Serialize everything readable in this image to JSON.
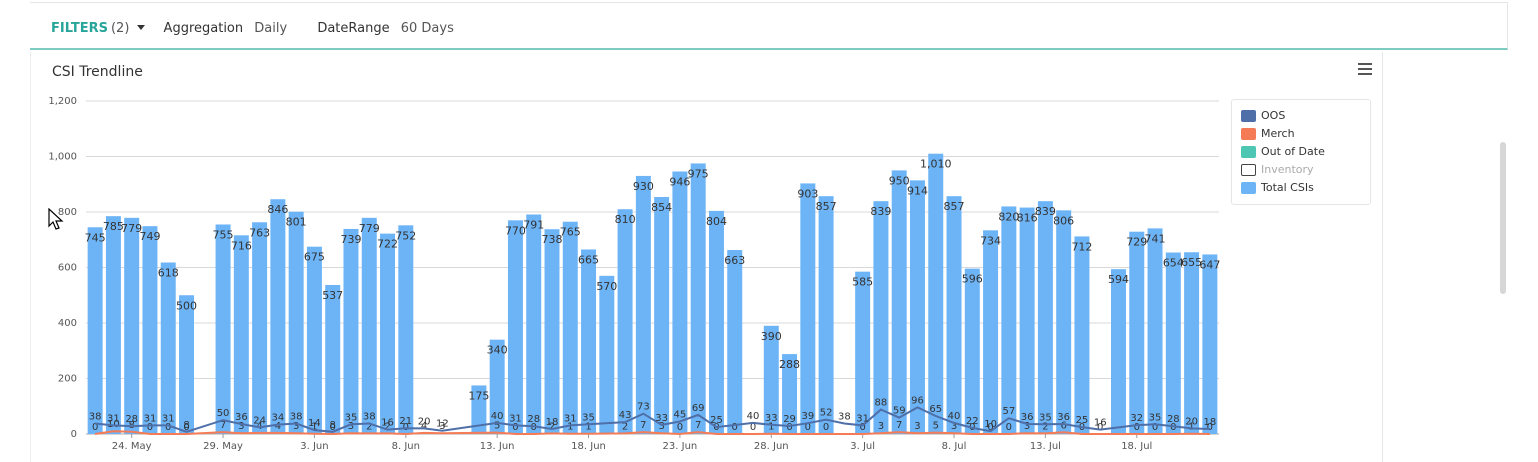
{
  "filters": {
    "label": "FILTERS",
    "count": "(2)",
    "aggregation_label": "Aggregation",
    "aggregation_value": "Daily",
    "daterange_label": "DateRange",
    "daterange_value": "60 Days"
  },
  "panel": {
    "title": "CSI Trendline"
  },
  "colors": {
    "oos": "#4e6fa8",
    "merch": "#f47b55",
    "out_of_date": "#4dc7b4",
    "inventory": "#ffffff",
    "total": "#6db4f7",
    "teal_accent": "#27a59a"
  },
  "chart_data": {
    "type": "bar",
    "title": "CSI Trendline",
    "ylim": [
      0,
      1200
    ],
    "y_ticks": [
      "0",
      "200",
      "400",
      "600",
      "800",
      "1,000",
      "1,200"
    ],
    "grid": true,
    "legend_position": "right",
    "x_tick_labels": [
      "24. May",
      "29. May",
      "3. Jun",
      "8. Jun",
      "13. Jun",
      "18. Jun",
      "23. Jun",
      "28. Jun",
      "3. Jul",
      "8. Jul",
      "13. Jul",
      "18. Jul"
    ],
    "legend": [
      {
        "name": "OOS",
        "color": "#4e6fa8",
        "visible": true
      },
      {
        "name": "Merch",
        "color": "#f47b55",
        "visible": true
      },
      {
        "name": "Out of Date",
        "color": "#4dc7b4",
        "visible": true
      },
      {
        "name": "Inventory",
        "color": "#ffffff",
        "visible": false
      },
      {
        "name": "Total CSIs",
        "color": "#6db4f7",
        "visible": true
      }
    ],
    "series": [
      {
        "name": "Total CSIs",
        "values": [
          745,
          785,
          779,
          749,
          618,
          500,
          null,
          755,
          716,
          763,
          846,
          801,
          675,
          537,
          739,
          779,
          722,
          752,
          null,
          null,
          null,
          175,
          340,
          770,
          791,
          738,
          765,
          665,
          570,
          810,
          930,
          854,
          946,
          975,
          804,
          663,
          null,
          390,
          288,
          903,
          857,
          null,
          585,
          839,
          950,
          914,
          1010,
          857,
          596,
          734,
          820,
          816,
          839,
          806,
          712,
          null,
          594,
          729,
          741,
          654,
          655,
          647
        ]
      },
      {
        "name": "OOS",
        "values": [
          38,
          31,
          28,
          31,
          31,
          8,
          null,
          50,
          36,
          24,
          34,
          38,
          14,
          8,
          35,
          38,
          16,
          21,
          20,
          12,
          null,
          null,
          40,
          31,
          28,
          18,
          31,
          35,
          null,
          43,
          73,
          33,
          45,
          69,
          25,
          null,
          40,
          33,
          29,
          39,
          52,
          38,
          31,
          88,
          59,
          96,
          65,
          40,
          22,
          10,
          57,
          36,
          35,
          36,
          25,
          16,
          null,
          32,
          35,
          28,
          20,
          18
        ]
      },
      {
        "name": "Merch",
        "values": [
          0,
          10,
          8,
          0,
          0,
          0,
          null,
          7,
          3,
          4,
          4,
          3,
          1,
          0,
          3,
          2,
          2,
          0,
          4,
          3,
          null,
          null,
          5,
          0,
          0,
          2,
          1,
          1,
          null,
          2,
          7,
          3,
          0,
          7,
          0,
          0,
          0,
          1,
          0,
          0,
          0,
          null,
          0,
          3,
          7,
          3,
          5,
          3,
          0,
          0,
          0,
          3,
          2,
          6,
          0,
          0,
          null,
          0,
          0,
          0,
          1,
          0
        ]
      }
    ],
    "data_labels_visible": [
      "745",
      "785",
      "779",
      "749",
      "618",
      "500",
      "755",
      "716",
      "763",
      "846",
      "801",
      "675",
      "537",
      "739",
      "779",
      "722",
      "752",
      "175",
      "340",
      "770",
      "791",
      "738",
      "765",
      "665",
      "570",
      "810",
      "930",
      "854",
      "946",
      "975",
      "804",
      "663",
      "390",
      "288",
      "903",
      "857",
      "585",
      "839",
      "950",
      "914",
      "1,010",
      "857",
      "596",
      "734",
      "820",
      "816",
      "839",
      "806",
      "712",
      "594",
      "729",
      "741",
      "654",
      "655",
      "647"
    ]
  }
}
